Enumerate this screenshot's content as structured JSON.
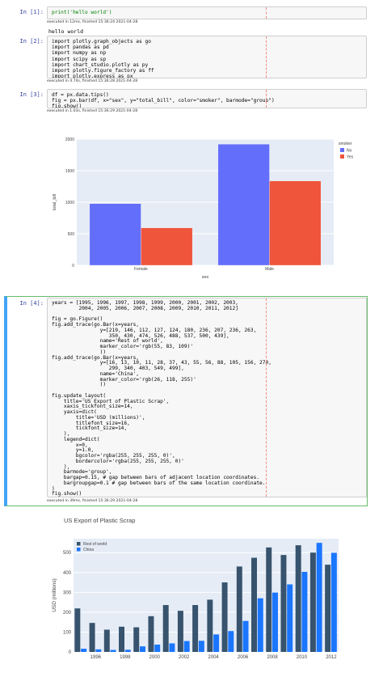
{
  "cells": [
    {
      "prompt": "In [1]:",
      "code": [
        "print('hello world')"
      ],
      "exec": "executed in 12ms, finished 15:36:24 2021-04-28",
      "output": "hello world"
    },
    {
      "prompt": "In [2]:",
      "code": [
        "import plotly.graph_objects as go",
        "import pandas as pd",
        "import numpy as np",
        "import scipy as sp",
        "import chart_studio.plotly as py",
        "import plotly.figure_factory as ff",
        "import plotly.express as px"
      ],
      "exec": "executed in 4.74s, finished 15:36:28 2021-04-28"
    },
    {
      "prompt": "In [3]:",
      "code": [
        "df = px.data.tips()",
        "fig = px.bar(df, x=\"sex\", y=\"total_bill\", color=\"smoker\", barmode=\"group\")",
        "fig.show()"
      ],
      "exec": "executed in 1.03s, finished 15:36:29 2021-04-28"
    },
    {
      "prompt": "In [4]:",
      "code": [
        "years = [1995, 1996, 1997, 1998, 1999, 2000, 2001, 2002, 2003,",
        "         2004, 2005, 2006, 2007, 2008, 2009, 2010, 2011, 2012]",
        "",
        "fig = go.Figure()",
        "fig.add_trace(go.Bar(x=years,",
        "                y=[219, 146, 112, 127, 124, 180, 236, 207, 236, 263,",
        "                   350, 430, 474, 526, 488, 537, 500, 439],",
        "                name='Rest of world',",
        "                marker_color='rgb(55, 83, 109)'",
        "                ))",
        "fig.add_trace(go.Bar(x=years,",
        "                y=[16, 13, 10, 11, 28, 37, 43, 55, 56, 88, 105, 156, 270,",
        "                   299, 340, 403, 549, 499],",
        "                name='China',",
        "                marker_color='rgb(26, 118, 255)'",
        "                ))",
        "",
        "fig.update_layout(",
        "    title='US Export of Plastic Scrap',",
        "    xaxis_tickfont_size=14,",
        "    yaxis=dict(",
        "        title='USD (millions)',",
        "        titlefont_size=16,",
        "        tickfont_size=14,",
        "    ),",
        "    legend=dict(",
        "        x=0,",
        "        y=1.0,",
        "        bgcolor='rgba(255, 255, 255, 0)',",
        "        bordercolor='rgba(255, 255, 255, 0)'",
        "    ),",
        "    barmode='group',",
        "    bargap=0.15, # gap between bars of adjacent location coordinates.",
        "    bargroupgap=0.1 # gap between bars of the same location coordinate.",
        ")",
        "fig.show()"
      ],
      "exec": "executed in 39ms, finished 15:36:29 2021-04-28"
    }
  ],
  "chart_data": [
    {
      "type": "bar",
      "title": "",
      "xlabel": "sex",
      "ylabel": "total_bill",
      "categories": [
        "Female",
        "Male"
      ],
      "series": [
        {
          "name": "No",
          "values": [
            977.68,
            1919.75
          ]
        },
        {
          "name": "Yes",
          "values": [
            593.27,
            1337.07
          ]
        }
      ],
      "legend_title": "smoker",
      "ylim": [
        0,
        2000
      ],
      "yticks": [
        0,
        500,
        1000,
        1500,
        2000
      ],
      "legend": "top-right",
      "colors": {
        "No": "#636efa",
        "Yes": "#ef553b"
      }
    },
    {
      "type": "bar",
      "title": "US Export of Plastic Scrap",
      "xlabel": "",
      "ylabel": "USD (millions)",
      "x": [
        1995,
        1996,
        1997,
        1998,
        1999,
        2000,
        2001,
        2002,
        2003,
        2004,
        2005,
        2006,
        2007,
        2008,
        2009,
        2010,
        2011,
        2012
      ],
      "series": [
        {
          "name": "Rest of world",
          "values": [
            219,
            146,
            112,
            127,
            124,
            180,
            236,
            207,
            236,
            263,
            350,
            430,
            474,
            526,
            488,
            537,
            500,
            439
          ]
        },
        {
          "name": "China",
          "values": [
            16,
            13,
            10,
            11,
            28,
            37,
            43,
            55,
            56,
            88,
            105,
            156,
            270,
            299,
            340,
            403,
            549,
            499
          ]
        }
      ],
      "ylim": [
        0,
        570
      ],
      "yticks": [
        0,
        100,
        200,
        300,
        400,
        500
      ],
      "xticks": [
        1996,
        1998,
        2000,
        2002,
        2004,
        2006,
        2008,
        2010,
        2012
      ],
      "legend": "top-left",
      "colors": {
        "Rest of world": "#37536d",
        "China": "#1a76ff"
      }
    }
  ]
}
